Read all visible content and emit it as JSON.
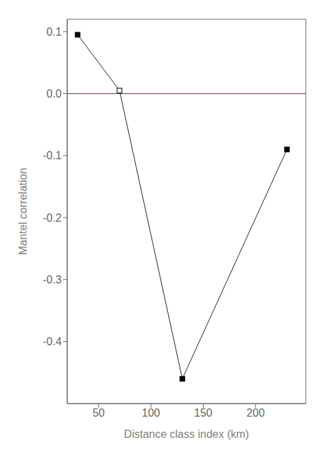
{
  "chart_data": {
    "type": "line",
    "x": [
      30,
      70,
      130,
      230
    ],
    "values": [
      0.095,
      0.005,
      -0.46,
      -0.09
    ],
    "color": "#222222",
    "colors": [
      "#000000",
      "#ffffff",
      "#000000",
      "#000000"
    ],
    "marker": "square",
    "xlabel": "Distance class index (km)",
    "ylabel": "Mantel correlation",
    "xlim": [
      20,
      248
    ],
    "ylim": [
      -0.5,
      0.12
    ],
    "xticks": [
      50,
      100,
      150,
      200
    ],
    "yticks": [
      0.1,
      {
        "value": 0.0,
        "label": "0.0"
      },
      -0.1,
      -0.2,
      -0.3,
      -0.4
    ],
    "grid": false,
    "hline": {
      "y": 0.0,
      "color": "#cc0000"
    }
  }
}
